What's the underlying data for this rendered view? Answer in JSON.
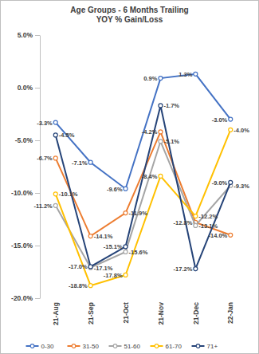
{
  "chart_data": {
    "type": "line",
    "title": "Age Groups - 6 Months Trailing",
    "subtitle": "YOY % Gain/Loss",
    "categories": [
      "21-Aug",
      "21-Sep",
      "21-Oct",
      "21-Nov",
      "21-Dec",
      "22-Jan"
    ],
    "ylim": [
      -20,
      5
    ],
    "yticks": [
      {
        "value": 5,
        "label": "5.0%"
      },
      {
        "value": 0,
        "label": "0.0%"
      },
      {
        "value": -5,
        "label": "-5.0%"
      },
      {
        "value": -10,
        "label": "-10.0%"
      },
      {
        "value": -15,
        "label": "-15.0%"
      },
      {
        "value": -20,
        "label": "-20.0%"
      }
    ],
    "grid": false,
    "legend": "bottom",
    "data_labels": true,
    "marker": "circle",
    "line_style": "solid",
    "series": [
      {
        "name": "0-30",
        "color": "#4472c4",
        "values": [
          -3.3,
          -7.1,
          -9.6,
          0.9,
          1.3,
          -3.0
        ],
        "value_labels": [
          "-3.3%",
          "-7.1%",
          "-9.6%",
          "0.9%",
          "1.3%",
          "-3.0%"
        ]
      },
      {
        "name": "31-50",
        "color": "#ed7d31",
        "values": [
          -6.7,
          -14.1,
          -11.9,
          -4.2,
          -12.8,
          -14.0
        ],
        "value_labels": [
          "-6.7%",
          "-14.1%",
          "-11.9%",
          "-4.2%",
          "-12.8%",
          "-14.0%"
        ]
      },
      {
        "name": "51-60",
        "color": "#a5a5a5",
        "values": [
          -11.2,
          -17.1,
          -15.6,
          -5.1,
          -13.1,
          -9.3
        ],
        "value_labels": [
          "-11.2%",
          "-17.1%",
          "-15.6%",
          "-5.1%",
          "-13.1%",
          "-9.3%"
        ]
      },
      {
        "name": "61-70",
        "color": "#ffc000",
        "values": [
          -10.1,
          -18.8,
          -17.8,
          -8.4,
          -12.2,
          -4.0
        ],
        "value_labels": [
          "-10.1%",
          "-18.8%",
          "-17.8%",
          "-8.4%",
          "-12.2%",
          "-4.0%"
        ]
      },
      {
        "name": "71+",
        "color": "#264478",
        "values": [
          -4.5,
          -17.0,
          -15.1,
          -1.7,
          -17.2,
          -9.0
        ],
        "value_labels": [
          "-4.5%",
          "-17.0%",
          "-15.1%",
          "-1.7%",
          "-17.2%",
          "-9.0%"
        ]
      }
    ]
  }
}
